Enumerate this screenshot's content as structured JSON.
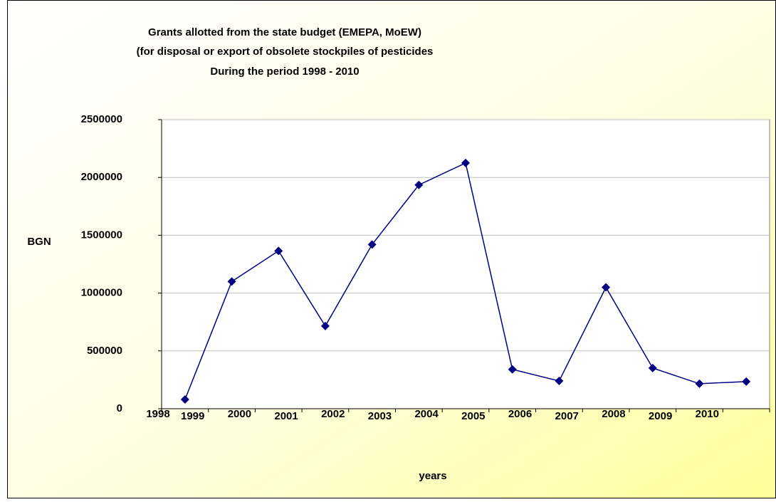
{
  "chart_data": {
    "type": "line",
    "title": [
      "Grants allotted from the state budget (EMEPA, MoEW)",
      "(for disposal or export of obsolete stockpiles of pesticides",
      "During the period 1998  - 2010"
    ],
    "y_label": "BGN",
    "x_label": "years",
    "categories": [
      "1998",
      "1999",
      "2000",
      "2001",
      "2002",
      "2003",
      "2004",
      "2005",
      "2006",
      "2007",
      "2008",
      "2009",
      "2010"
    ],
    "series": [
      {
        "color": "#000080",
        "values": [
          80000,
          1100000,
          1365000,
          715000,
          1420000,
          1935000,
          2125000,
          340000,
          240000,
          1050000,
          352000,
          216000,
          235000
        ]
      }
    ],
    "ylim": [
      0,
      2500000
    ],
    "yticks": [
      0,
      500000,
      1000000,
      1500000,
      2000000,
      2500000
    ],
    "grid": true
  }
}
